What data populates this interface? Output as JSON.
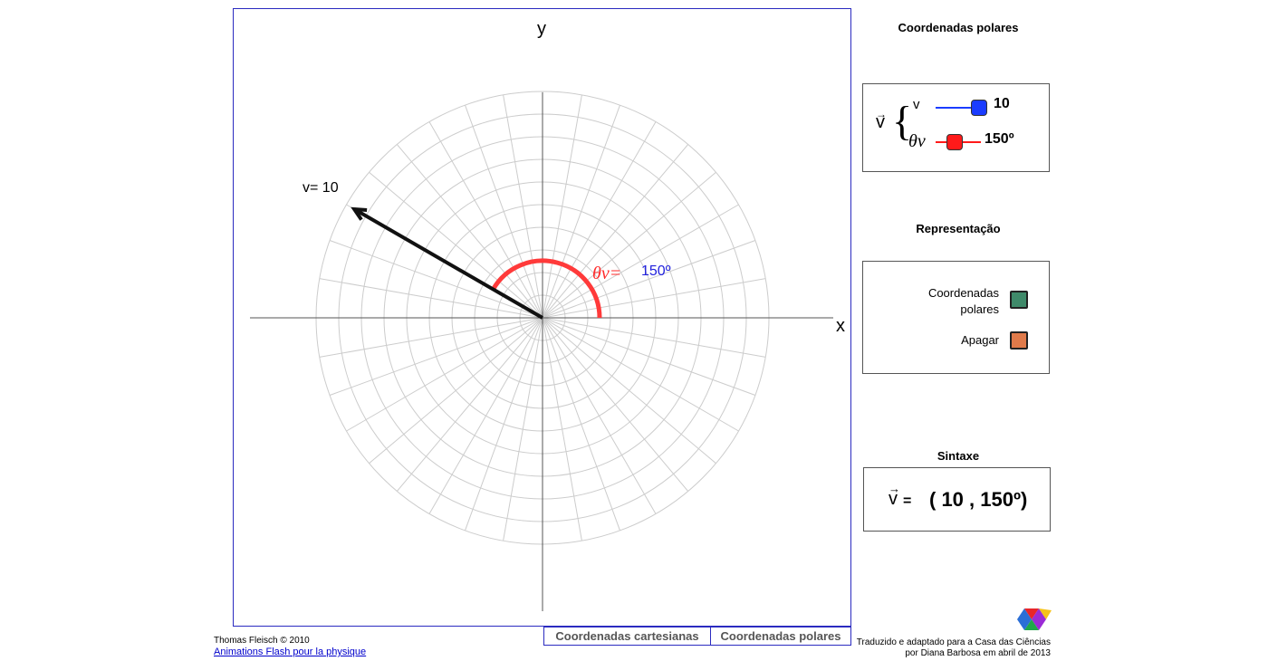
{
  "plot": {
    "x_label": "x",
    "y_label": "y",
    "vector_label": "v= 10",
    "angle_label": "θv=",
    "angle_value": "150º",
    "magnitude": 10,
    "angle_deg": 150,
    "colors": {
      "vector": "#111111",
      "arc": "#ff3a3a",
      "angle_value": "#2222dd",
      "grid": "#cccccc",
      "axis": "#555555",
      "frame": "#2b2bc0"
    }
  },
  "polar_panel": {
    "title": "Coordenadas polares",
    "vector_symbol": "v",
    "v_label": "v",
    "theta_label": "θv",
    "v_value": "10",
    "theta_value": "150º",
    "v_slider_fraction": 1.0,
    "theta_slider_fraction": 0.42,
    "v_color": "#1a3cff",
    "theta_color": "#ff1a1a"
  },
  "representation_panel": {
    "title": "Representação",
    "option_polar": "Coordenadas polares",
    "option_polar_line1": "Coordenadas",
    "option_polar_line2": "polares",
    "option_clear": "Apagar",
    "polar_color": "#3f8a6a",
    "clear_color": "#e07a4a"
  },
  "syntax_panel": {
    "title": "Sintaxe",
    "vector_symbol": "v",
    "equals": "=",
    "expression": "( 10 , 150º)"
  },
  "tabs": {
    "cartesian": "Coordenadas cartesianas",
    "polar": "Coordenadas polares"
  },
  "footer": {
    "author": "Thomas Fleisch © 2010",
    "link": "Animations Flash pour la physique",
    "credit_line1": "Traduzido e adaptado para a Casa das Ciências",
    "credit_line2": "por Diana Barbosa em abril de 2013"
  },
  "logo": {
    "name": "casa-das-ciencias-logo",
    "colors": [
      "#e8262a",
      "#2b6fd6",
      "#1fa84a",
      "#f6c21a",
      "#9b2bd6"
    ]
  }
}
